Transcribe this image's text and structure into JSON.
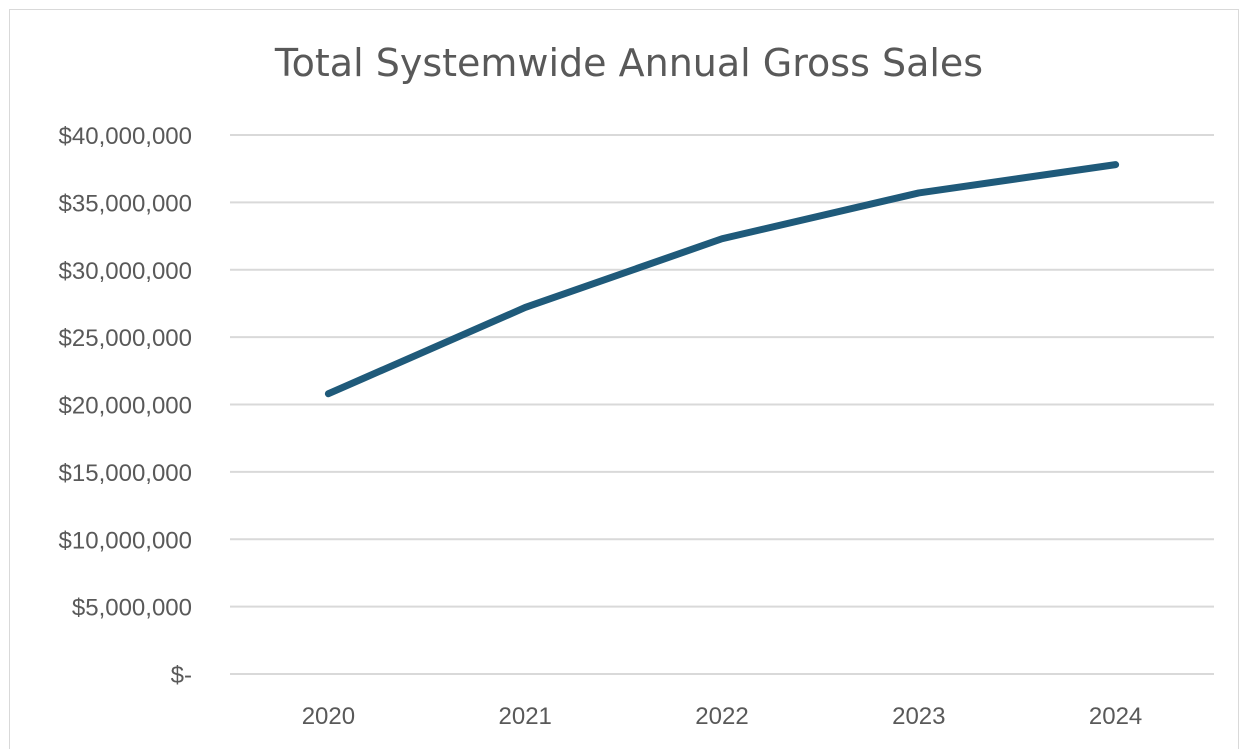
{
  "chart_data": {
    "type": "line",
    "title": "Total Systemwide Annual Gross Sales",
    "xlabel": "",
    "ylabel": "",
    "categories": [
      "2020",
      "2021",
      "2022",
      "2023",
      "2024"
    ],
    "series": [
      {
        "values": [
          20800000,
          27200000,
          32300000,
          35700000,
          37800000
        ]
      }
    ],
    "ylim": [
      0,
      40000000
    ],
    "yticks": [
      0,
      5000000,
      10000000,
      15000000,
      20000000,
      25000000,
      30000000,
      35000000,
      40000000
    ],
    "ytick_labels": [
      "$-",
      "$5,000,000",
      "$10,000,000",
      "$15,000,000",
      "$20,000,000",
      "$25,000,000",
      "$30,000,000",
      "$35,000,000",
      "$40,000,000"
    ],
    "grid": "horizontal",
    "legend": "none",
    "colors": {
      "series": "#1f5a7a",
      "grid": "#d9d9d9",
      "text": "#595959"
    }
  }
}
